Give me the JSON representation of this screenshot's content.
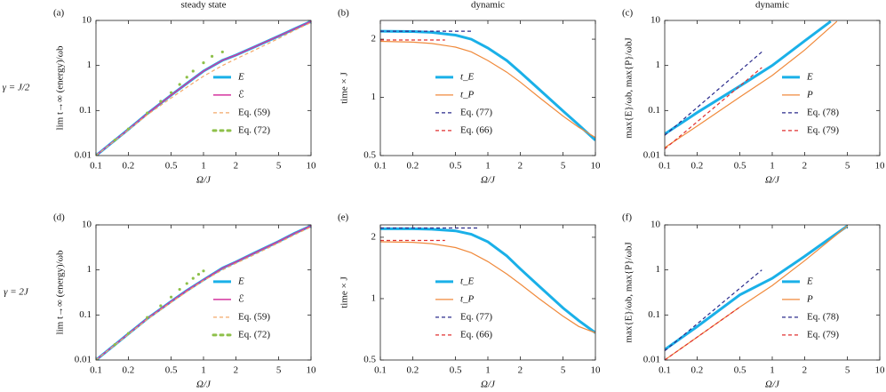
{
  "chart_data": [
    {
      "type": "line",
      "panel": "(a)",
      "title": "steady state",
      "row_label": "γ = J/2",
      "xlabel": "Ω/J",
      "ylabel": "lim t→∞ (energy)/ωb",
      "xscale": "log",
      "yscale": "log",
      "xlim": [
        0.1,
        10
      ],
      "ylim": [
        0.01,
        10
      ],
      "xticks": [
        0.1,
        0.2,
        0.5,
        1,
        2,
        5,
        10
      ],
      "yticks": [
        0.01,
        0.1,
        1,
        10
      ],
      "legend": "right",
      "series": [
        {
          "name": "E",
          "color": "#1ab0e8",
          "style": "solid",
          "width": 3,
          "x": [
            0.1,
            0.2,
            0.3,
            0.5,
            0.7,
            1,
            1.5,
            2,
            3,
            5,
            7,
            10
          ],
          "values": [
            0.01,
            0.038,
            0.085,
            0.22,
            0.4,
            0.75,
            1.3,
            1.7,
            2.6,
            4.5,
            6.5,
            9.5
          ]
        },
        {
          "name": "ℰ",
          "color": "#d4359f",
          "style": "solid",
          "width": 1.5,
          "x": [
            0.1,
            0.2,
            0.3,
            0.5,
            0.7,
            1,
            1.5,
            2,
            3,
            5,
            7,
            10
          ],
          "values": [
            0.01,
            0.038,
            0.085,
            0.22,
            0.4,
            0.75,
            1.3,
            1.7,
            2.6,
            4.5,
            6.5,
            9.5
          ]
        },
        {
          "name": "Eq. (59)",
          "color": "#f3a86a",
          "style": "dashed",
          "width": 1.2,
          "x": [
            0.1,
            0.2,
            0.3,
            0.5,
            0.7,
            1,
            1.5,
            2,
            3,
            5,
            7,
            10
          ],
          "values": [
            0.01,
            0.037,
            0.08,
            0.19,
            0.33,
            0.58,
            1.0,
            1.4,
            2.2,
            4.0,
            6.0,
            9.0
          ]
        },
        {
          "name": "Eq. (72)",
          "color": "#8ec04a",
          "style": "dotted",
          "width": 1.5,
          "x": [
            0.1,
            0.15,
            0.2,
            0.3,
            0.4,
            0.5,
            0.6,
            0.7,
            0.8,
            1.0,
            1.2,
            1.5
          ],
          "values": [
            0.01,
            0.022,
            0.039,
            0.088,
            0.16,
            0.25,
            0.38,
            0.55,
            0.75,
            1.15,
            1.6,
            2.0
          ]
        }
      ]
    },
    {
      "type": "line",
      "panel": "(b)",
      "title": "dynamic",
      "xlabel": "Ω/J",
      "ylabel": "time × J",
      "xscale": "log",
      "yscale": "log",
      "xlim": [
        0.1,
        10
      ],
      "ylim": [
        0.5,
        2.5
      ],
      "xticks": [
        0.1,
        0.2,
        0.5,
        1,
        2,
        5,
        10
      ],
      "yticks": [
        0.5,
        1,
        2
      ],
      "legend": "center",
      "series": [
        {
          "name": "t_E",
          "color": "#1ab0e8",
          "style": "solid",
          "width": 3,
          "x": [
            0.1,
            0.2,
            0.3,
            0.5,
            0.7,
            1,
            1.5,
            2,
            3,
            5,
            7,
            10
          ],
          "values": [
            2.2,
            2.19,
            2.17,
            2.1,
            2.0,
            1.8,
            1.55,
            1.35,
            1.1,
            0.85,
            0.72,
            0.6
          ]
        },
        {
          "name": "t_P",
          "color": "#f08a3c",
          "style": "solid",
          "width": 1.2,
          "x": [
            0.1,
            0.2,
            0.3,
            0.5,
            0.7,
            1,
            1.5,
            2,
            3,
            5,
            7,
            10
          ],
          "values": [
            1.95,
            1.93,
            1.9,
            1.82,
            1.72,
            1.55,
            1.35,
            1.2,
            1.0,
            0.8,
            0.7,
            0.62
          ]
        },
        {
          "name": "Eq. (77)",
          "color": "#2b2b8c",
          "style": "dashed",
          "width": 1.2,
          "x": [
            0.1,
            0.7
          ],
          "values": [
            2.2,
            2.2
          ]
        },
        {
          "name": "Eq. (66)",
          "color": "#e03030",
          "style": "dashed",
          "width": 1.2,
          "x": [
            0.1,
            0.4
          ],
          "values": [
            1.98,
            1.98
          ]
        }
      ]
    },
    {
      "type": "line",
      "panel": "(c)",
      "title": "dynamic",
      "xlabel": "Ω/J",
      "ylabel": "max{E}/ωb,  max{P}/ωbJ",
      "xscale": "log",
      "yscale": "log",
      "xlim": [
        0.1,
        10
      ],
      "ylim": [
        0.01,
        10
      ],
      "xticks": [
        0.1,
        0.2,
        0.5,
        1,
        2,
        5,
        10
      ],
      "yticks": [
        0.01,
        0.1,
        1,
        10
      ],
      "legend": "right",
      "series": [
        {
          "name": "E",
          "color": "#1ab0e8",
          "style": "solid",
          "width": 3,
          "x": [
            0.1,
            0.2,
            0.5,
            1,
            2,
            3.5
          ],
          "values": [
            0.03,
            0.09,
            0.35,
            1.0,
            3.5,
            9.5
          ]
        },
        {
          "name": "P",
          "color": "#f08a3c",
          "style": "solid",
          "width": 1.2,
          "x": [
            0.1,
            0.2,
            0.5,
            1,
            2,
            4
          ],
          "values": [
            0.015,
            0.045,
            0.2,
            0.6,
            2.2,
            9.5
          ]
        },
        {
          "name": "Eq. (78)",
          "color": "#2b2b8c",
          "style": "dashed",
          "width": 1.2,
          "x": [
            0.1,
            0.8
          ],
          "values": [
            0.028,
            2.0
          ]
        },
        {
          "name": "Eq. (79)",
          "color": "#e03030",
          "style": "dashed",
          "width": 1.2,
          "x": [
            0.1,
            0.8
          ],
          "values": [
            0.014,
            0.9
          ]
        }
      ]
    },
    {
      "type": "line",
      "panel": "(d)",
      "row_label": "γ = 2J",
      "xlabel": "Ω/J",
      "ylabel": "lim t→∞ (energy)/ωb",
      "xscale": "log",
      "yscale": "log",
      "xlim": [
        0.1,
        10
      ],
      "ylim": [
        0.01,
        10
      ],
      "xticks": [
        0.1,
        0.2,
        0.5,
        1,
        2,
        5,
        10
      ],
      "yticks": [
        0.01,
        0.1,
        1,
        10
      ],
      "legend": "right",
      "series": [
        {
          "name": "E",
          "color": "#1ab0e8",
          "style": "solid",
          "width": 3,
          "x": [
            0.1,
            0.2,
            0.3,
            0.5,
            0.7,
            1,
            1.5,
            2,
            3,
            5,
            7,
            10
          ],
          "values": [
            0.01,
            0.038,
            0.083,
            0.2,
            0.35,
            0.6,
            1.1,
            1.5,
            2.4,
            4.3,
            6.5,
            9.5
          ]
        },
        {
          "name": "ℰ",
          "color": "#d4359f",
          "style": "solid",
          "width": 1.5,
          "x": [
            0.1,
            0.2,
            0.3,
            0.5,
            0.7,
            1,
            1.5,
            2,
            3,
            5,
            7,
            10
          ],
          "values": [
            0.01,
            0.038,
            0.083,
            0.2,
            0.35,
            0.6,
            1.1,
            1.5,
            2.4,
            4.3,
            6.5,
            9.5
          ]
        },
        {
          "name": "Eq. (59)",
          "color": "#f3a86a",
          "style": "dashed",
          "width": 1.2,
          "x": [
            0.1,
            0.2,
            0.3,
            0.5,
            0.7,
            1,
            1.5,
            2,
            3,
            5,
            7,
            10
          ],
          "values": [
            0.01,
            0.037,
            0.08,
            0.19,
            0.33,
            0.58,
            1.0,
            1.4,
            2.2,
            4.0,
            6.0,
            9.0
          ]
        },
        {
          "name": "Eq. (72)",
          "color": "#8ec04a",
          "style": "dotted",
          "width": 1.5,
          "x": [
            0.1,
            0.15,
            0.2,
            0.3,
            0.4,
            0.5,
            0.6,
            0.7,
            0.8,
            0.9,
            1.0
          ],
          "values": [
            0.01,
            0.022,
            0.039,
            0.088,
            0.16,
            0.25,
            0.37,
            0.5,
            0.65,
            0.8,
            0.95
          ]
        }
      ]
    },
    {
      "type": "line",
      "panel": "(e)",
      "xlabel": "Ω/J",
      "ylabel": "time × J",
      "xscale": "log",
      "yscale": "log",
      "xlim": [
        0.1,
        10
      ],
      "ylim": [
        0.5,
        2.3
      ],
      "xticks": [
        0.1,
        0.2,
        0.5,
        1,
        2,
        5,
        10
      ],
      "yticks": [
        0.5,
        1,
        2
      ],
      "legend": "center",
      "series": [
        {
          "name": "t_E",
          "color": "#1ab0e8",
          "style": "solid",
          "width": 3,
          "x": [
            0.1,
            0.2,
            0.3,
            0.5,
            0.7,
            1,
            1.5,
            2,
            3,
            5,
            7,
            10
          ],
          "values": [
            2.2,
            2.2,
            2.19,
            2.15,
            2.07,
            1.9,
            1.62,
            1.4,
            1.15,
            0.9,
            0.78,
            0.68
          ]
        },
        {
          "name": "t_P",
          "color": "#f08a3c",
          "style": "solid",
          "width": 1.2,
          "x": [
            0.1,
            0.2,
            0.3,
            0.5,
            0.7,
            1,
            1.5,
            2,
            3,
            5,
            7,
            10
          ],
          "values": [
            1.9,
            1.89,
            1.86,
            1.78,
            1.68,
            1.52,
            1.32,
            1.18,
            1.0,
            0.82,
            0.73,
            0.68
          ]
        },
        {
          "name": "Eq. (77)",
          "color": "#2b2b8c",
          "style": "dashed",
          "width": 1.2,
          "x": [
            0.1,
            0.8
          ],
          "values": [
            2.22,
            2.22
          ]
        },
        {
          "name": "Eq. (66)",
          "color": "#e03030",
          "style": "dashed",
          "width": 1.2,
          "x": [
            0.1,
            0.4
          ],
          "values": [
            1.93,
            1.93
          ]
        }
      ]
    },
    {
      "type": "line",
      "panel": "(f)",
      "xlabel": "Ω/J",
      "ylabel": "max{E}/ωb,  max{P}/ωbJ",
      "xscale": "log",
      "yscale": "log",
      "xlim": [
        0.1,
        10
      ],
      "ylim": [
        0.01,
        10
      ],
      "xticks": [
        0.1,
        0.2,
        0.5,
        1,
        2,
        5,
        10
      ],
      "yticks": [
        0.01,
        0.1,
        1,
        10
      ],
      "legend": "right",
      "series": [
        {
          "name": "E",
          "color": "#1ab0e8",
          "style": "solid",
          "width": 3,
          "x": [
            0.1,
            0.2,
            0.5,
            1,
            2,
            5
          ],
          "values": [
            0.017,
            0.055,
            0.28,
            0.65,
            2.0,
            9.5
          ]
        },
        {
          "name": "P",
          "color": "#f08a3c",
          "style": "solid",
          "width": 1.2,
          "x": [
            0.1,
            0.2,
            0.5,
            1,
            2,
            5
          ],
          "values": [
            0.01,
            0.032,
            0.15,
            0.45,
            1.6,
            9.5
          ]
        },
        {
          "name": "Eq. (78)",
          "color": "#2b2b8c",
          "style": "dashed",
          "width": 1.2,
          "x": [
            0.1,
            0.8
          ],
          "values": [
            0.016,
            1.0
          ]
        },
        {
          "name": "Eq. (79)",
          "color": "#e03030",
          "style": "dashed",
          "width": 1.2,
          "x": [
            0.1,
            0.5
          ],
          "values": [
            0.01,
            0.15
          ]
        }
      ]
    }
  ]
}
